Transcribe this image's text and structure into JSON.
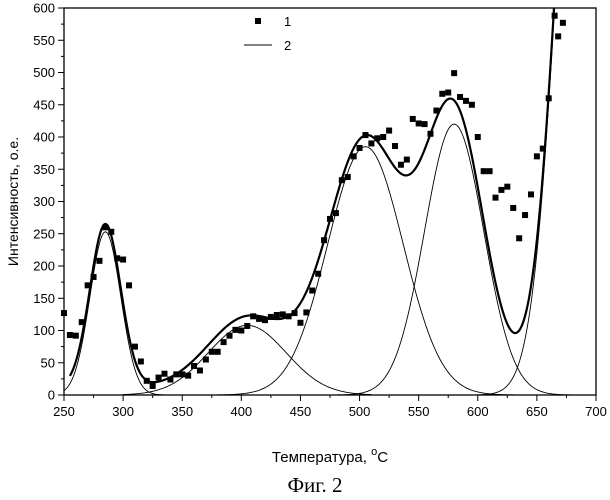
{
  "caption": "Фиг. 2",
  "chart_data": {
    "type": "line",
    "title": "",
    "xlabel": "Температура, ",
    "xlabel_unit": "С",
    "xlabel_superscript": "о",
    "ylabel": "Интенсивность, о.е.",
    "xlim": [
      250,
      700
    ],
    "ylim": [
      0,
      600
    ],
    "xticks": [
      250,
      300,
      350,
      400,
      450,
      500,
      550,
      600,
      650,
      700
    ],
    "yticks": [
      0,
      50,
      100,
      150,
      200,
      250,
      300,
      350,
      400,
      450,
      500,
      550,
      600
    ],
    "legend": {
      "placement": "top-left",
      "entries": [
        {
          "label": "1",
          "marker": "square"
        },
        {
          "label": "2",
          "marker": "line"
        }
      ]
    },
    "series": [
      {
        "name": "1",
        "kind": "scatter",
        "points": [
          [
            250,
            127
          ],
          [
            255,
            93
          ],
          [
            260,
            92
          ],
          [
            265,
            113
          ],
          [
            270,
            170
          ],
          [
            275,
            183
          ],
          [
            280,
            208
          ],
          [
            285,
            260
          ],
          [
            290,
            253
          ],
          [
            295,
            212
          ],
          [
            300,
            210
          ],
          [
            305,
            170
          ],
          [
            310,
            75
          ],
          [
            315,
            52
          ],
          [
            320,
            22
          ],
          [
            325,
            14
          ],
          [
            330,
            27
          ],
          [
            335,
            33
          ],
          [
            340,
            24
          ],
          [
            345,
            32
          ],
          [
            350,
            32
          ],
          [
            355,
            30
          ],
          [
            360,
            45
          ],
          [
            365,
            38
          ],
          [
            370,
            55
          ],
          [
            375,
            67
          ],
          [
            380,
            67
          ],
          [
            385,
            82
          ],
          [
            390,
            92
          ],
          [
            395,
            101
          ],
          [
            400,
            100
          ],
          [
            405,
            107
          ],
          [
            410,
            122
          ],
          [
            415,
            118
          ],
          [
            420,
            116
          ],
          [
            425,
            121
          ],
          [
            430,
            124
          ],
          [
            435,
            125
          ],
          [
            440,
            122
          ],
          [
            445,
            127
          ],
          [
            450,
            112
          ],
          [
            455,
            128
          ],
          [
            460,
            162
          ],
          [
            465,
            188
          ],
          [
            470,
            240
          ],
          [
            475,
            273
          ],
          [
            480,
            282
          ],
          [
            485,
            333
          ],
          [
            490,
            338
          ],
          [
            495,
            370
          ],
          [
            500,
            383
          ],
          [
            505,
            403
          ],
          [
            510,
            390
          ],
          [
            515,
            398
          ],
          [
            520,
            400
          ],
          [
            525,
            410
          ],
          [
            530,
            386
          ],
          [
            535,
            357
          ],
          [
            540,
            365
          ],
          [
            545,
            428
          ],
          [
            550,
            421
          ],
          [
            555,
            420
          ],
          [
            560,
            405
          ],
          [
            565,
            441
          ],
          [
            570,
            467
          ],
          [
            575,
            469
          ],
          [
            580,
            499
          ],
          [
            585,
            462
          ],
          [
            590,
            456
          ],
          [
            595,
            450
          ],
          [
            600,
            400
          ],
          [
            605,
            347
          ],
          [
            610,
            347
          ],
          [
            615,
            306
          ],
          [
            620,
            318
          ],
          [
            625,
            323
          ],
          [
            630,
            290
          ],
          [
            635,
            243
          ],
          [
            640,
            279
          ],
          [
            645,
            311
          ],
          [
            650,
            370
          ],
          [
            655,
            382
          ],
          [
            660,
            460
          ],
          [
            665,
            588
          ],
          [
            668,
            556
          ],
          [
            672,
            577
          ]
        ]
      },
      {
        "name": "2",
        "kind": "line",
        "components": [
          {
            "center": 285,
            "amp": 253,
            "sigma": 13
          },
          {
            "center": 405,
            "amp": 108,
            "sigma": 33
          },
          {
            "center": 505,
            "amp": 385,
            "sigma": 32
          },
          {
            "center": 580,
            "amp": 420,
            "sigma": 25
          },
          {
            "center": 690,
            "amp": 1150,
            "sigma": 22
          }
        ],
        "component_ranges": [
          [
            250,
            350
          ],
          [
            300,
            510
          ],
          [
            380,
            650
          ],
          [
            450,
            680
          ],
          [
            600,
            670
          ]
        ]
      }
    ]
  }
}
